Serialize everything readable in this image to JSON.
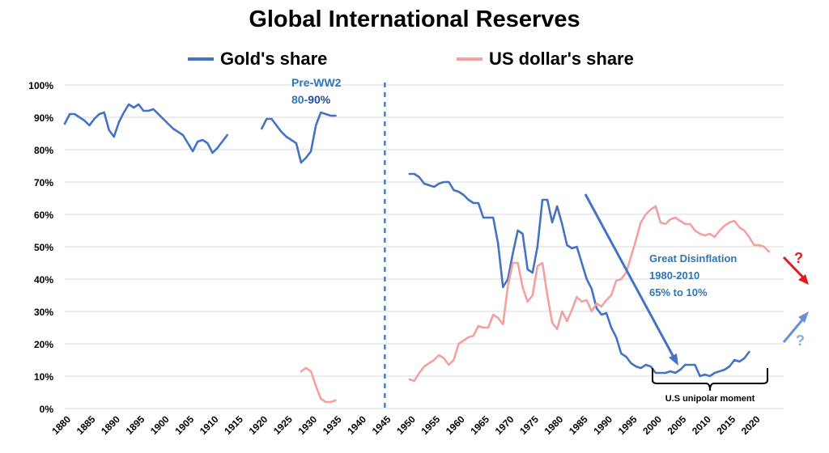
{
  "chart_data": {
    "type": "line",
    "title": "Global International Reserves",
    "xlim": [
      1880,
      2026
    ],
    "ylim": [
      0,
      100
    ],
    "x_ticks": [
      1880,
      1885,
      1890,
      1895,
      1900,
      1905,
      1910,
      1915,
      1920,
      1925,
      1930,
      1935,
      1940,
      1945,
      1950,
      1955,
      1960,
      1965,
      1970,
      1975,
      1980,
      1985,
      1990,
      1995,
      2000,
      2005,
      2010,
      2015,
      2020
    ],
    "y_ticks": [
      0,
      10,
      20,
      30,
      40,
      50,
      60,
      70,
      80,
      90,
      100
    ],
    "y_tick_labels": [
      "0%",
      "10%",
      "20%",
      "30%",
      "40%",
      "50%",
      "60%",
      "70%",
      "80%",
      "90%",
      "100%"
    ],
    "grid": true,
    "legend": "top",
    "series": [
      {
        "name": "Gold's share",
        "color": "#4472c4",
        "segments": [
          [
            [
              1880,
              88
            ],
            [
              1881,
              91
            ],
            [
              1882,
              91
            ],
            [
              1883,
              90
            ],
            [
              1884,
              89
            ],
            [
              1885,
              87.5
            ],
            [
              1886,
              89.5
            ],
            [
              1887,
              91
            ],
            [
              1888,
              91.5
            ],
            [
              1889,
              86
            ],
            [
              1890,
              84
            ],
            [
              1891,
              88.5
            ],
            [
              1892,
              91.5
            ],
            [
              1893,
              94
            ],
            [
              1894,
              93
            ],
            [
              1895,
              94
            ],
            [
              1896,
              92
            ],
            [
              1897,
              92
            ],
            [
              1898,
              92.5
            ],
            [
              1899,
              91
            ],
            [
              1900,
              89.5
            ],
            [
              1901,
              88
            ],
            [
              1902,
              86.5
            ],
            [
              1903,
              85.5
            ],
            [
              1904,
              84.5
            ],
            [
              1905,
              82
            ],
            [
              1906,
              79.5
            ],
            [
              1907,
              82.5
            ],
            [
              1908,
              83
            ],
            [
              1909,
              82
            ],
            [
              1910,
              79
            ],
            [
              1911,
              80.5
            ],
            [
              1912,
              82.5
            ],
            [
              1913,
              84.5
            ]
          ],
          [
            [
              1920,
              86.5
            ],
            [
              1921,
              89.5
            ],
            [
              1922,
              89.5
            ],
            [
              1923,
              87.5
            ],
            [
              1924,
              85.5
            ],
            [
              1925,
              84
            ],
            [
              1926,
              83
            ],
            [
              1927,
              82
            ],
            [
              1928,
              76
            ],
            [
              1929,
              77.5
            ],
            [
              1930,
              79.5
            ],
            [
              1931,
              87.5
            ],
            [
              1932,
              91.5
            ],
            [
              1933,
              91
            ],
            [
              1934,
              90.5
            ],
            [
              1935,
              90.5
            ]
          ],
          [
            [
              1950,
              72.5
            ],
            [
              1951,
              72.5
            ],
            [
              1952,
              71.5
            ],
            [
              1953,
              69.5
            ],
            [
              1954,
              69
            ],
            [
              1955,
              68.5
            ],
            [
              1956,
              69.5
            ],
            [
              1957,
              70
            ],
            [
              1958,
              70
            ],
            [
              1959,
              67.5
            ],
            [
              1960,
              67
            ],
            [
              1961,
              66
            ],
            [
              1962,
              64.5
            ],
            [
              1963,
              63.5
            ],
            [
              1964,
              63.5
            ],
            [
              1965,
              59
            ],
            [
              1966,
              59
            ],
            [
              1967,
              59
            ],
            [
              1968,
              51
            ],
            [
              1969,
              37.5
            ],
            [
              1970,
              40
            ],
            [
              1971,
              48
            ],
            [
              1972,
              55
            ],
            [
              1973,
              54
            ],
            [
              1974,
              43
            ],
            [
              1975,
              42
            ],
            [
              1976,
              50
            ],
            [
              1977,
              64.5
            ],
            [
              1978,
              64.5
            ],
            [
              1979,
              57.5
            ],
            [
              1980,
              62.5
            ],
            [
              1981,
              57
            ],
            [
              1982,
              50.5
            ],
            [
              1983,
              49.5
            ],
            [
              1984,
              50
            ],
            [
              1985,
              45
            ],
            [
              1986,
              40
            ],
            [
              1987,
              37
            ],
            [
              1988,
              31
            ],
            [
              1989,
              29
            ],
            [
              1990,
              29.5
            ],
            [
              1991,
              25
            ],
            [
              1992,
              22
            ],
            [
              1993,
              17
            ],
            [
              1994,
              16
            ],
            [
              1995,
              14
            ],
            [
              1996,
              13
            ],
            [
              1997,
              12.5
            ],
            [
              1998,
              13.5
            ],
            [
              1999,
              13
            ],
            [
              2000,
              11
            ],
            [
              2001,
              11
            ],
            [
              2002,
              11
            ],
            [
              2003,
              11.5
            ],
            [
              2004,
              11
            ],
            [
              2005,
              12
            ],
            [
              2006,
              13.5
            ],
            [
              2007,
              13.5
            ],
            [
              2008,
              13.5
            ],
            [
              2009,
              10
            ],
            [
              2010,
              10.5
            ],
            [
              2011,
              10
            ],
            [
              2012,
              11
            ],
            [
              2013,
              11.5
            ],
            [
              2014,
              12
            ],
            [
              2015,
              13
            ],
            [
              2016,
              15
            ],
            [
              2017,
              14.5
            ],
            [
              2018,
              15.5
            ],
            [
              2019,
              17.5
            ]
          ]
        ]
      },
      {
        "name": "US dollar's share",
        "color": "#f4a0a0",
        "segments": [
          [
            [
              1928,
              11.5
            ],
            [
              1929,
              12.5
            ],
            [
              1930,
              11.5
            ],
            [
              1931,
              7
            ],
            [
              1932,
              3
            ],
            [
              1933,
              2
            ],
            [
              1934,
              2
            ],
            [
              1935,
              2.5
            ]
          ],
          [
            [
              1950,
              9
            ],
            [
              1951,
              8.5
            ],
            [
              1952,
              11
            ],
            [
              1953,
              13
            ],
            [
              1954,
              14
            ],
            [
              1955,
              15
            ],
            [
              1956,
              16.5
            ],
            [
              1957,
              15.5
            ],
            [
              1958,
              13.5
            ],
            [
              1959,
              15
            ],
            [
              1960,
              20
            ],
            [
              1961,
              21
            ],
            [
              1962,
              22
            ],
            [
              1963,
              22.5
            ],
            [
              1964,
              25.5
            ],
            [
              1965,
              25
            ],
            [
              1966,
              25
            ],
            [
              1967,
              29
            ],
            [
              1968,
              28
            ],
            [
              1969,
              26
            ],
            [
              1970,
              38
            ],
            [
              1971,
              45
            ],
            [
              1972,
              45
            ],
            [
              1973,
              37.5
            ],
            [
              1974,
              33
            ],
            [
              1975,
              35
            ],
            [
              1976,
              44
            ],
            [
              1977,
              45
            ],
            [
              1978,
              35
            ],
            [
              1979,
              26.5
            ],
            [
              1980,
              24.5
            ],
            [
              1981,
              30
            ],
            [
              1982,
              27
            ],
            [
              1983,
              30.5
            ],
            [
              1984,
              34.5
            ],
            [
              1985,
              33
            ],
            [
              1986,
              33.5
            ],
            [
              1987,
              30
            ],
            [
              1988,
              32.5
            ],
            [
              1989,
              31.5
            ],
            [
              1990,
              33.5
            ],
            [
              1991,
              35
            ],
            [
              1992,
              39.5
            ],
            [
              1993,
              40
            ],
            [
              1994,
              42
            ],
            [
              1995,
              47
            ],
            [
              1996,
              52
            ],
            [
              1997,
              57.5
            ],
            [
              1998,
              60
            ],
            [
              1999,
              61.5
            ],
            [
              2000,
              62.5
            ],
            [
              2001,
              57.5
            ],
            [
              2002,
              57
            ],
            [
              2003,
              58.5
            ],
            [
              2004,
              59
            ],
            [
              2005,
              58
            ],
            [
              2006,
              57
            ],
            [
              2007,
              57
            ],
            [
              2008,
              55
            ],
            [
              2009,
              54
            ],
            [
              2010,
              53.5
            ],
            [
              2011,
              54
            ],
            [
              2012,
              53
            ],
            [
              2013,
              55
            ],
            [
              2014,
              56.5
            ],
            [
              2015,
              57.5
            ],
            [
              2016,
              58
            ],
            [
              2017,
              56
            ],
            [
              2018,
              55
            ],
            [
              2019,
              53
            ],
            [
              2020,
              50.5
            ],
            [
              2021,
              50.5
            ],
            [
              2022,
              50
            ],
            [
              2023,
              48.5
            ]
          ]
        ]
      }
    ],
    "annotations": {
      "pre_ww2_title": "Pre-WW2",
      "pre_ww2_range_a": "80-",
      "pre_ww2_range_b": "90%",
      "disinflation_1": "Great Disinflation",
      "disinflation_2": "1980-2010",
      "disinflation_3": "65% to 10%",
      "unipolar": "U.S unipolar moment",
      "question_red": "?",
      "question_blue": "?"
    }
  }
}
